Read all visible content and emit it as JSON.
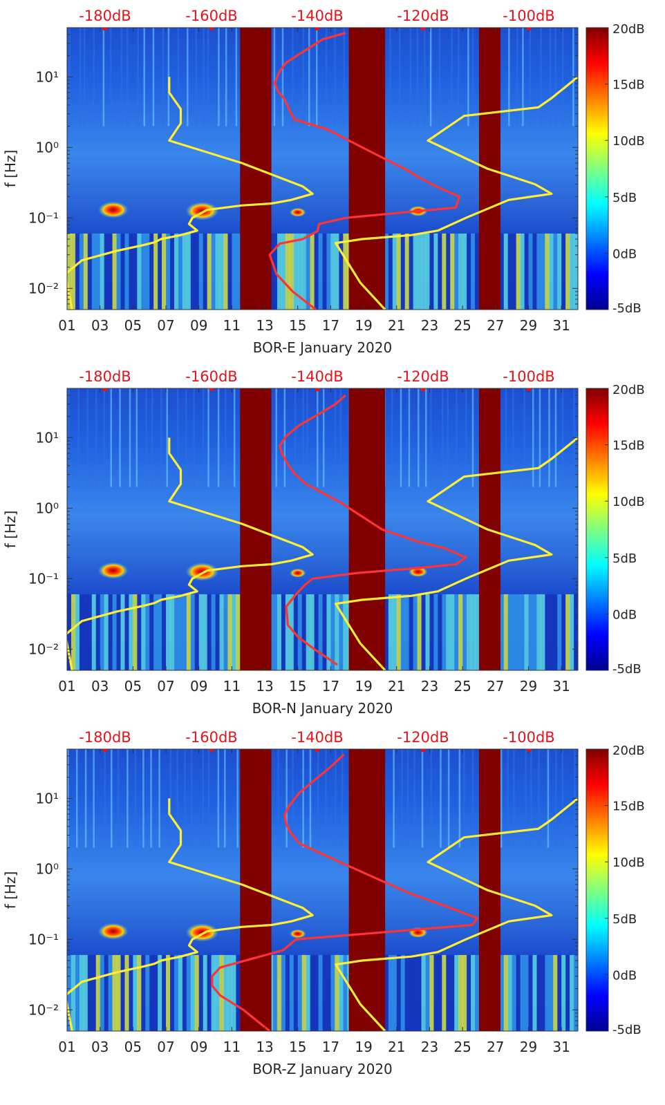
{
  "figure": {
    "ylabel": "f [Hz]",
    "colorbar": {
      "ticks": [
        "20dB",
        "15dB",
        "10dB",
        "5dB",
        "0dB",
        "-5dB"
      ],
      "range_db": [
        -5,
        20
      ],
      "colormap": "jet"
    },
    "top_axis_ticks": [
      "-180dB",
      "-160dB",
      "-140dB",
      "-120dB",
      "-100dB"
    ],
    "x_ticks": [
      "01",
      "03",
      "05",
      "07",
      "09",
      "11",
      "13",
      "15",
      "17",
      "19",
      "21",
      "23",
      "25",
      "27",
      "29",
      "31"
    ],
    "y_ticks": [
      "10¹",
      "10⁰",
      "10⁻¹",
      "10⁻²"
    ],
    "colors": {
      "yellow_curve": "#ffee33",
      "red_curve": "#e8141a",
      "top_axis_text": "#e0141a",
      "gap_fill": "#800000"
    }
  },
  "chart_data": [
    {
      "type": "heatmap",
      "title": "",
      "xlabel": "BOR-E January 2020",
      "ylabel": "f [Hz]",
      "xlim": [
        1,
        32
      ],
      "ylim_hz": [
        0.005,
        50
      ],
      "yscale": "log",
      "top_xlim_db": [
        -190,
        -95
      ],
      "data_gaps_days": [
        [
          11.5,
          13.4
        ],
        [
          18.1,
          20.3
        ],
        [
          26.0,
          27.3
        ]
      ],
      "series": [
        {
          "name": "",
          "color": "#ffee33",
          "x_day": [
            1.3,
            0.9,
            1.9,
            4.0,
            5.6,
            6.3,
            6.7,
            7.9,
            8.9,
            8.4,
            8.6,
            9.5,
            11.6,
            13.4,
            14.6,
            15.9,
            15.3,
            11.6,
            7.2,
            7.9,
            7.9,
            7.2,
            7.2
          ],
          "f_hz": [
            0.005,
            0.016,
            0.025,
            0.034,
            0.041,
            0.045,
            0.05,
            0.057,
            0.066,
            0.082,
            0.1,
            0.13,
            0.15,
            0.16,
            0.18,
            0.22,
            0.28,
            0.6,
            1.25,
            2.2,
            3.5,
            6.0,
            10.0
          ]
        },
        {
          "name": "",
          "color": "#ff3333",
          "x_day": [
            16.1,
            14.7,
            13.7,
            13.3,
            13.9,
            15.3,
            16.2,
            16.3,
            17.9,
            21.5,
            24.6,
            24.8,
            23.4,
            22.5,
            21.6,
            19.3,
            16.8,
            14.8,
            14.5,
            14.2,
            13.8,
            13.6,
            13.9,
            14.3,
            15.6,
            16.5,
            17.9
          ],
          "f_hz": [
            0.005,
            0.009,
            0.016,
            0.03,
            0.043,
            0.05,
            0.065,
            0.082,
            0.1,
            0.12,
            0.14,
            0.2,
            0.28,
            0.36,
            0.48,
            0.9,
            1.8,
            2.5,
            3.4,
            4.8,
            6.3,
            8.2,
            12.0,
            16.0,
            25.0,
            34.0,
            42.0
          ]
        },
        {
          "name": "",
          "color": "#ffee33",
          "x_day": [
            20.3,
            18.8,
            17.3,
            18.9,
            21.9,
            23.5,
            25.2,
            27.8,
            30.4,
            29.4,
            26.5,
            22.9,
            25.1,
            29.6,
            30.4,
            32.0
          ],
          "f_hz": [
            0.005,
            0.012,
            0.044,
            0.05,
            0.057,
            0.066,
            0.1,
            0.18,
            0.22,
            0.3,
            0.5,
            1.25,
            2.8,
            3.7,
            5.0,
            10.0
          ]
        }
      ]
    },
    {
      "type": "heatmap",
      "title": "",
      "xlabel": "BOR-N January 2020",
      "ylabel": "f [Hz]",
      "xlim": [
        1,
        32
      ],
      "ylim_hz": [
        0.005,
        50
      ],
      "yscale": "log",
      "top_xlim_db": [
        -190,
        -95
      ],
      "data_gaps_days": [
        [
          11.5,
          13.4
        ],
        [
          18.1,
          20.3
        ],
        [
          26.0,
          27.3
        ]
      ],
      "series": [
        {
          "name": "",
          "color": "#ffee33",
          "x_day": [
            1.3,
            0.9,
            1.9,
            4.0,
            5.6,
            6.3,
            6.7,
            7.9,
            8.9,
            8.4,
            8.6,
            9.5,
            11.6,
            13.4,
            14.6,
            15.9,
            15.3,
            11.6,
            7.2,
            7.9,
            7.9,
            7.2,
            7.2
          ],
          "f_hz": [
            0.005,
            0.016,
            0.025,
            0.034,
            0.041,
            0.045,
            0.05,
            0.057,
            0.066,
            0.082,
            0.1,
            0.13,
            0.15,
            0.16,
            0.18,
            0.22,
            0.28,
            0.6,
            1.25,
            2.2,
            3.5,
            6.0,
            10.0
          ]
        },
        {
          "name": "",
          "color": "#ff3333",
          "x_day": [
            17.4,
            16.0,
            15.0,
            14.4,
            14.3,
            14.9,
            15.4,
            15.9,
            18.6,
            22.1,
            24.6,
            25.2,
            23.9,
            22.2,
            20.1,
            17.6,
            15.5,
            14.8,
            14.4,
            14.1,
            13.9,
            14.3,
            15.1,
            16.2,
            17.3,
            17.9
          ],
          "f_hz": [
            0.006,
            0.01,
            0.015,
            0.022,
            0.04,
            0.06,
            0.08,
            0.1,
            0.12,
            0.14,
            0.16,
            0.2,
            0.27,
            0.34,
            0.5,
            1.2,
            2.2,
            3.1,
            4.2,
            5.6,
            7.6,
            10.5,
            15.0,
            21.0,
            30.0,
            40.0
          ]
        },
        {
          "name": "",
          "color": "#ffee33",
          "x_day": [
            20.3,
            18.8,
            17.3,
            18.9,
            21.9,
            23.5,
            25.2,
            27.8,
            30.4,
            29.4,
            26.5,
            22.9,
            25.1,
            29.6,
            30.4,
            32.0
          ],
          "f_hz": [
            0.005,
            0.012,
            0.044,
            0.05,
            0.057,
            0.066,
            0.1,
            0.18,
            0.22,
            0.3,
            0.5,
            1.25,
            2.8,
            3.7,
            5.0,
            10.0
          ]
        }
      ]
    },
    {
      "type": "heatmap",
      "title": "",
      "xlabel": "BOR-Z January 2020",
      "ylabel": "f [Hz]",
      "xlim": [
        1,
        32
      ],
      "ylim_hz": [
        0.005,
        50
      ],
      "yscale": "log",
      "top_xlim_db": [
        -190,
        -95
      ],
      "data_gaps_days": [
        [
          11.5,
          13.4
        ],
        [
          18.1,
          20.3
        ],
        [
          26.0,
          27.3
        ]
      ],
      "series": [
        {
          "name": "",
          "color": "#ffee33",
          "x_day": [
            1.3,
            0.9,
            1.9,
            4.0,
            5.6,
            6.3,
            6.7,
            7.9,
            8.9,
            8.4,
            8.6,
            9.5,
            11.6,
            13.4,
            14.6,
            15.9,
            15.3,
            11.6,
            7.2,
            7.9,
            7.9,
            7.2,
            7.2
          ],
          "f_hz": [
            0.005,
            0.016,
            0.025,
            0.034,
            0.041,
            0.045,
            0.05,
            0.057,
            0.066,
            0.082,
            0.1,
            0.13,
            0.15,
            0.16,
            0.18,
            0.22,
            0.28,
            0.6,
            1.25,
            2.2,
            3.5,
            6.0,
            10.0
          ]
        },
        {
          "name": "",
          "color": "#ff3333",
          "x_day": [
            13.3,
            11.7,
            10.3,
            9.8,
            9.8,
            10.3,
            14.1,
            14.9,
            19.1,
            22.6,
            25.6,
            25.9,
            23.9,
            21.8,
            19.4,
            16.8,
            15.1,
            14.6,
            14.3,
            14.2,
            14.5,
            15.1,
            16.0,
            17.0,
            17.8
          ],
          "f_hz": [
            0.005,
            0.01,
            0.016,
            0.022,
            0.03,
            0.04,
            0.07,
            0.1,
            0.12,
            0.14,
            0.16,
            0.2,
            0.3,
            0.45,
            0.8,
            1.5,
            2.3,
            3.2,
            4.3,
            5.8,
            8.0,
            12.0,
            18.0,
            28.0,
            42.0
          ]
        },
        {
          "name": "",
          "color": "#ffee33",
          "x_day": [
            20.3,
            18.8,
            17.3,
            18.9,
            21.9,
            23.5,
            25.2,
            27.8,
            30.4,
            29.4,
            26.5,
            22.9,
            25.1,
            29.6,
            30.4,
            32.0
          ],
          "f_hz": [
            0.005,
            0.012,
            0.044,
            0.05,
            0.057,
            0.066,
            0.1,
            0.18,
            0.22,
            0.3,
            0.5,
            1.25,
            2.8,
            3.7,
            5.0,
            10.0
          ]
        }
      ]
    }
  ]
}
